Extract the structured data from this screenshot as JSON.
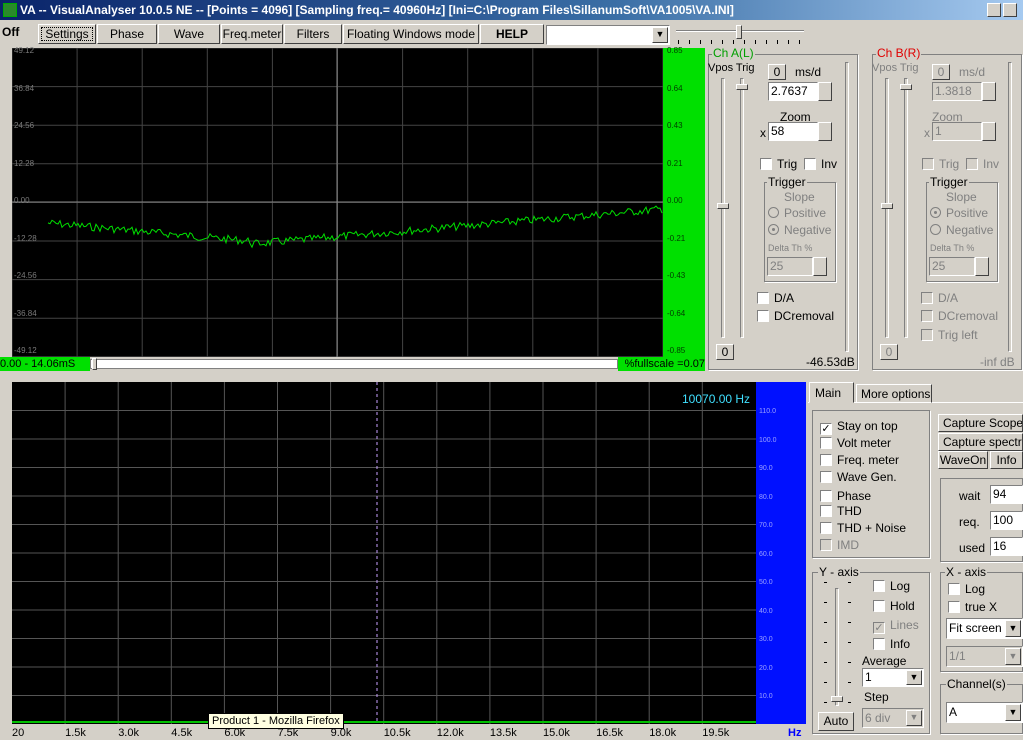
{
  "window": {
    "title": "VA -- VisualAnalyser 10.0.5 NE --  [Points = 4096]  [Sampling freq.= 40960Hz]  [Ini=C:\\Program Files\\SillanumSoft\\VA1005\\VA.INI]"
  },
  "toolbar": {
    "off": "Off",
    "settings": "Settings",
    "phase": "Phase",
    "wave": "Wave",
    "freq_meter": "Freq.meter",
    "filters": "Filters",
    "floating": "Floating Windows mode",
    "help": "HELP"
  },
  "scope": {
    "yticks": [
      "49.12",
      "36.84",
      "24.56",
      "12.28",
      "0.00",
      "-12.28",
      "-24.56",
      "-36.84",
      "-49.12"
    ],
    "right_ticks": [
      "0.85",
      "0.64",
      "0.43",
      "0.21",
      "0.00",
      "-0.21",
      "-0.43",
      "-0.64",
      "-0.85"
    ],
    "time_range": "0.00 - 14.06mS",
    "fullscale": "%fullscale =0.07"
  },
  "chA": {
    "title": "Ch A(L)",
    "vpos_trig": "Vpos Trig",
    "zero": "0",
    "msd_label": "ms/d",
    "msd_value": "2.7637",
    "zoom_label": "Zoom",
    "zoom_x": "x",
    "zoom_value": "58",
    "trig": "Trig",
    "inv": "Inv",
    "trigger": "Trigger",
    "slope": "Slope",
    "positive": "Positive",
    "negative": "Negative",
    "delta": "Delta Th %",
    "delta_value": "25",
    "da": "D/A",
    "dcremoval": "DCremoval",
    "bottom_zero": "0",
    "level": "-46.53dB"
  },
  "chB": {
    "title": "Ch B(R)",
    "vpos_trig": "Vpos Trig",
    "zero": "0",
    "msd_label": "ms/d",
    "msd_value": "1.3818",
    "zoom_label": "Zoom",
    "zoom_x": "x",
    "zoom_value": "1",
    "trig": "Trig",
    "inv": "Inv",
    "trigger": "Trigger",
    "slope": "Slope",
    "positive": "Positive",
    "negative": "Negative",
    "delta": "Delta Th %",
    "delta_value": "25",
    "da": "D/A",
    "dcremoval": "DCremoval",
    "trigleft": "Trig left",
    "bottom_zero": "0",
    "level": "-inf dB"
  },
  "spectrum": {
    "freq_readout": "10070.00 Hz",
    "x_ticks": [
      "20",
      "1.5k",
      "3.0k",
      "4.5k",
      "6.0k",
      "7.5k",
      "9.0k",
      "10.5k",
      "12.0k",
      "13.5k",
      "15.0k",
      "16.5k",
      "18.0k",
      "19.5k"
    ],
    "unit": "Hz",
    "db_ticks": [
      "110.0",
      "100.0",
      "90.0",
      "80.0",
      "70.0",
      "60.0",
      "50.0",
      "40.0",
      "30.0",
      "20.0",
      "10.0"
    ],
    "tooltip": "Product 1 - Mozilla Firefox"
  },
  "tabs": {
    "main": "Main",
    "more": "More options"
  },
  "main": {
    "stay_on_top": "Stay on top",
    "volt_meter": "Volt meter",
    "freq_meter": "Freq. meter",
    "wave_gen": "Wave Gen.",
    "phase": "Phase",
    "thd": "THD",
    "thd_noise": "THD + Noise",
    "imd": "IMD",
    "capture_scope": "Capture Scope",
    "capture_spectrum": "Capture spectrum",
    "waveon": "WaveOn",
    "info": "Info",
    "wait_label": "wait",
    "wait_value": "94",
    "req_label": "req.",
    "req_value": "100",
    "used_label": "used",
    "used_value": "16"
  },
  "yaxis": {
    "title": "Y - axis",
    "log": "Log",
    "hold": "Hold",
    "lines": "Lines",
    "info": "Info",
    "average": "Average",
    "average_value": "1",
    "step": "Step",
    "auto": "Auto",
    "step_value": "6 div"
  },
  "xaxis": {
    "title": "X - axis",
    "log": "Log",
    "truex": "true X",
    "fit": "Fit screen",
    "ratio": "1/1"
  },
  "channels": {
    "title": "Channel(s)",
    "value": "A"
  }
}
